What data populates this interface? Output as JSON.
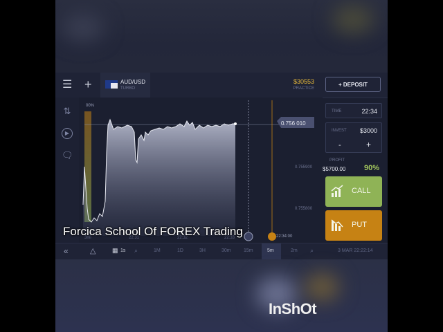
{
  "app": {
    "asset": {
      "name": "AUD/USD",
      "type": "TURBO"
    },
    "balance": {
      "amount": "$30553",
      "mode": "PRACTICE"
    },
    "deposit_label": "+ DEPOSIT"
  },
  "chart": {
    "current_price": "0.756 010",
    "y_ticks": [
      "0.755900",
      "0.755800"
    ],
    "top_label": "00%",
    "expiry_time": "22:34:00",
    "x_ticks": [
      "3mi",
      "22:31",
      "22:32",
      "22:33"
    ]
  },
  "panel": {
    "time_label": "TIME",
    "time_value": "22:34",
    "invest_label": "INVEST",
    "invest_value": "$3000",
    "minus": "-",
    "plus": "+",
    "profit_label": "PROFIT",
    "profit_value": "$5700.00",
    "profit_pct": "90%",
    "call_label": "CALL",
    "put_label": "PUT"
  },
  "bottombar": {
    "collapse": "«",
    "candle_interval": "1s",
    "timeframes": [
      "1M",
      "1D",
      "3H",
      "30m",
      "15m",
      "5m",
      "2m"
    ],
    "active_timeframe": "5m",
    "datetime": "3 MAR 22:22:14"
  },
  "overlay": {
    "caption": "Forcica School Of FOREX Trading",
    "watermark": "InShOt"
  },
  "colors": {
    "call": "#8fb356",
    "put": "#c68214",
    "accent": "#e7b93a",
    "background": "#1b1f30"
  },
  "icons": {
    "menu": "hamburger-icon",
    "add": "plus-icon",
    "sort": "arrows-updown-icon",
    "play": "play-icon",
    "chat": "chat-bubble-icon",
    "call": "chart-up-icon",
    "put": "chart-down-icon"
  }
}
